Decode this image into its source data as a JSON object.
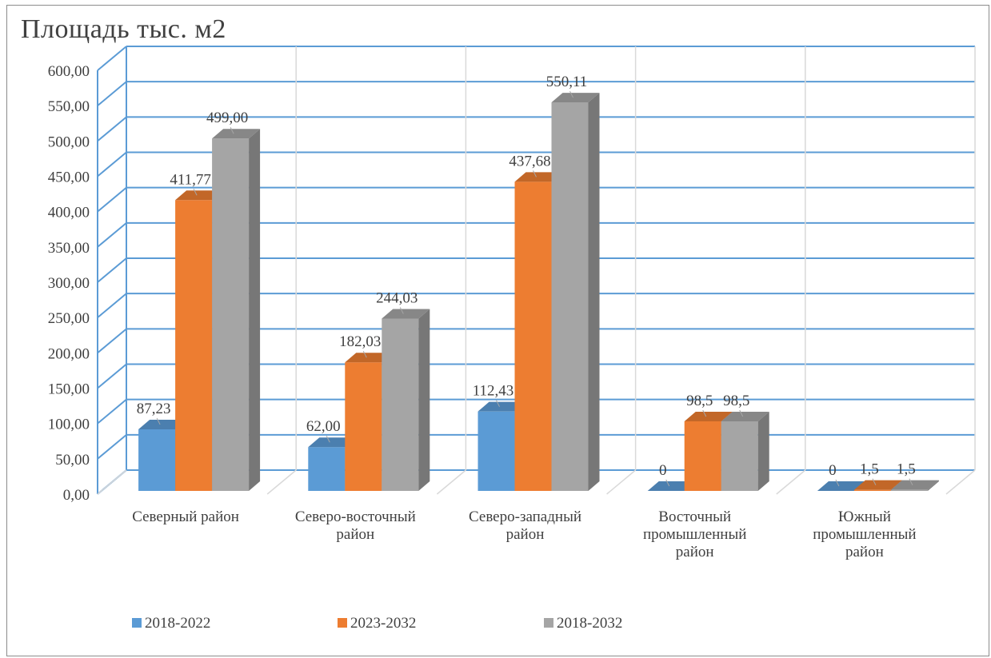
{
  "chart_data": {
    "type": "bar",
    "title": "Площадь тыс. м2",
    "categories": [
      [
        "Северный район"
      ],
      [
        "Северо-восточный",
        "район"
      ],
      [
        "Северо-западный",
        "район"
      ],
      [
        "Восточный",
        "промышленный",
        "район"
      ],
      [
        "Южный",
        "промышленный",
        "район"
      ]
    ],
    "series": [
      {
        "name": "2018-2022",
        "color": "#5b9bd5",
        "values": [
          87.23,
          62.0,
          112.43,
          0,
          0
        ],
        "labels": [
          "87,23",
          "62,00",
          "112,43",
          "0",
          "0"
        ]
      },
      {
        "name": "2023-2032",
        "color": "#ed7d31",
        "values": [
          411.77,
          182.03,
          437.68,
          98.5,
          1.5
        ],
        "labels": [
          "411,77",
          "182,03",
          "437,68",
          "98,5",
          "1,5"
        ]
      },
      {
        "name": "2018-2032",
        "color": "#a5a5a5",
        "values": [
          499.0,
          244.03,
          550.11,
          98.5,
          1.5
        ],
        "labels": [
          "499,00",
          "244,03",
          "550,11",
          "98,5",
          "1,5"
        ]
      }
    ],
    "y_tick_labels": [
      "0,00",
      "50,00",
      "100,00",
      "150,00",
      "200,00",
      "250,00",
      "300,00",
      "350,00",
      "400,00",
      "450,00",
      "500,00",
      "550,00",
      "600,00"
    ],
    "ylim": [
      0,
      600
    ],
    "grid": true,
    "gridline_color": "#5b9bd5",
    "legend_position": "bottom",
    "style": "3d-clustered-column"
  }
}
